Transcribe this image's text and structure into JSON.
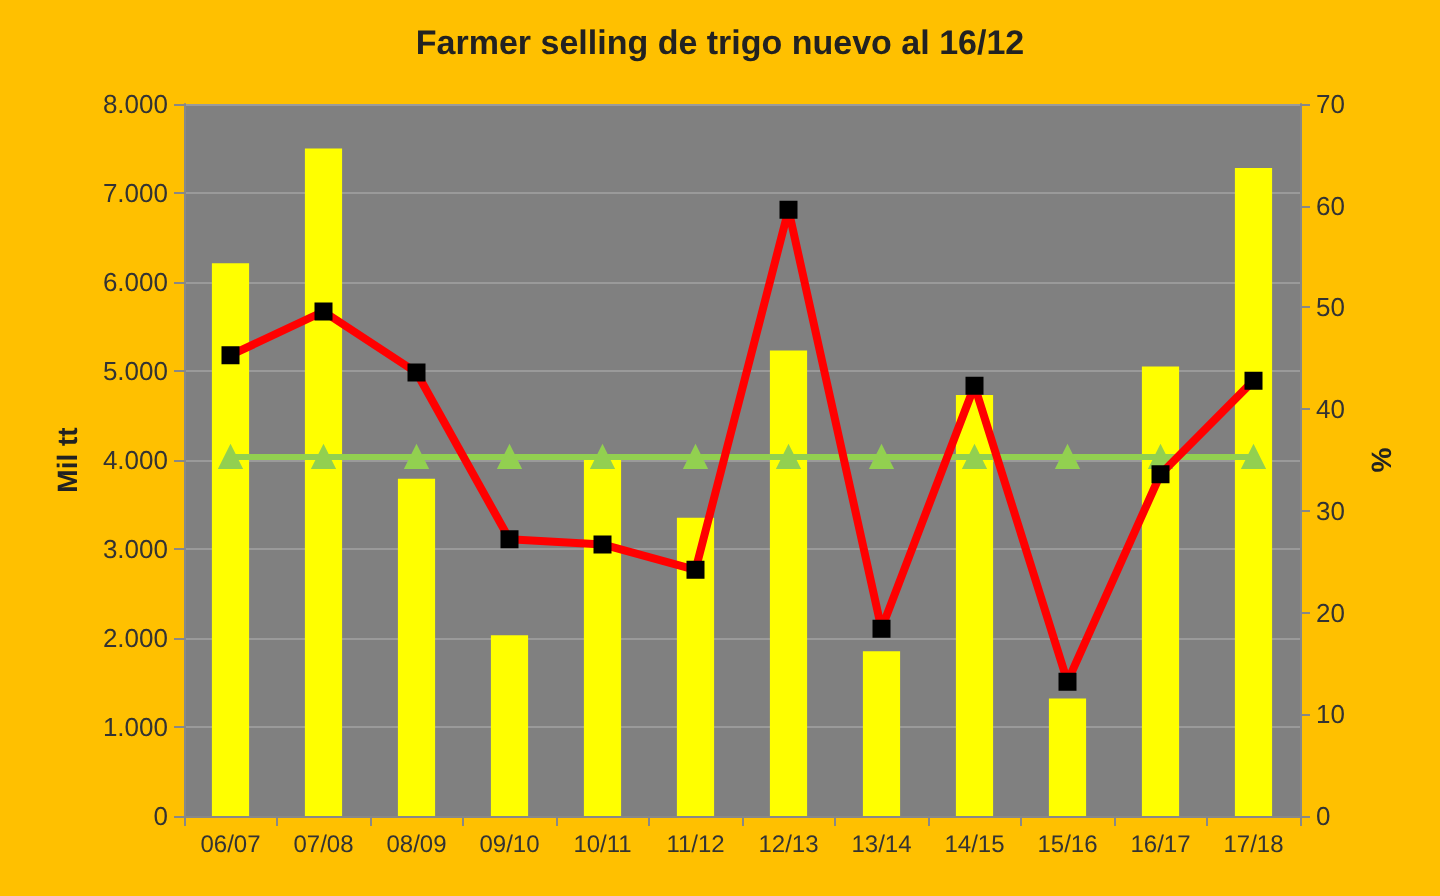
{
  "chart_data": {
    "type": "bar",
    "title": "Farmer selling de trigo nuevo al 16/12",
    "ylabel": "Mil tt",
    "y2label": "%",
    "categories": [
      "06/07",
      "07/08",
      "08/09",
      "09/10",
      "10/11",
      "11/12",
      "12/13",
      "13/14",
      "14/15",
      "15/16",
      "16/17",
      "17/18"
    ],
    "series": [
      {
        "color": "#ffff00",
        "values": [
          6210,
          7500,
          3790,
          2030,
          4010,
          3350,
          5230,
          1850,
          4730,
          1320,
          5050,
          7280
        ]
      },
      {
        "type": "line",
        "axis": "y2",
        "color": "#ff0000",
        "marker": "square",
        "values": [
          45.3,
          49.6,
          43.6,
          27.2,
          26.7,
          24.2,
          59.6,
          18.4,
          42.3,
          13.2,
          33.6,
          42.8
        ]
      },
      {
        "type": "line",
        "axis": "y2",
        "color": "#92d050",
        "marker": "triangle",
        "values": [
          35.3,
          35.3,
          35.3,
          35.3,
          35.3,
          35.3,
          35.3,
          35.3,
          35.3,
          35.3,
          35.3,
          35.3
        ]
      }
    ],
    "ylim": [
      0,
      8000
    ],
    "yticks": [
      0,
      {
        "value": 1000,
        "label": "1.000"
      },
      {
        "value": 2000,
        "label": "2.000"
      },
      {
        "value": 3000,
        "label": "3.000"
      },
      {
        "value": 4000,
        "label": "4.000"
      },
      {
        "value": 5000,
        "label": "5.000"
      },
      {
        "value": 6000,
        "label": "6.000"
      },
      {
        "value": 7000,
        "label": "7.000"
      },
      {
        "value": 8000,
        "label": "8.000"
      }
    ],
    "y2lim": [
      0,
      70
    ],
    "y2ticks": [
      0,
      10,
      20,
      30,
      40,
      50,
      60,
      70
    ],
    "grid": "y"
  }
}
